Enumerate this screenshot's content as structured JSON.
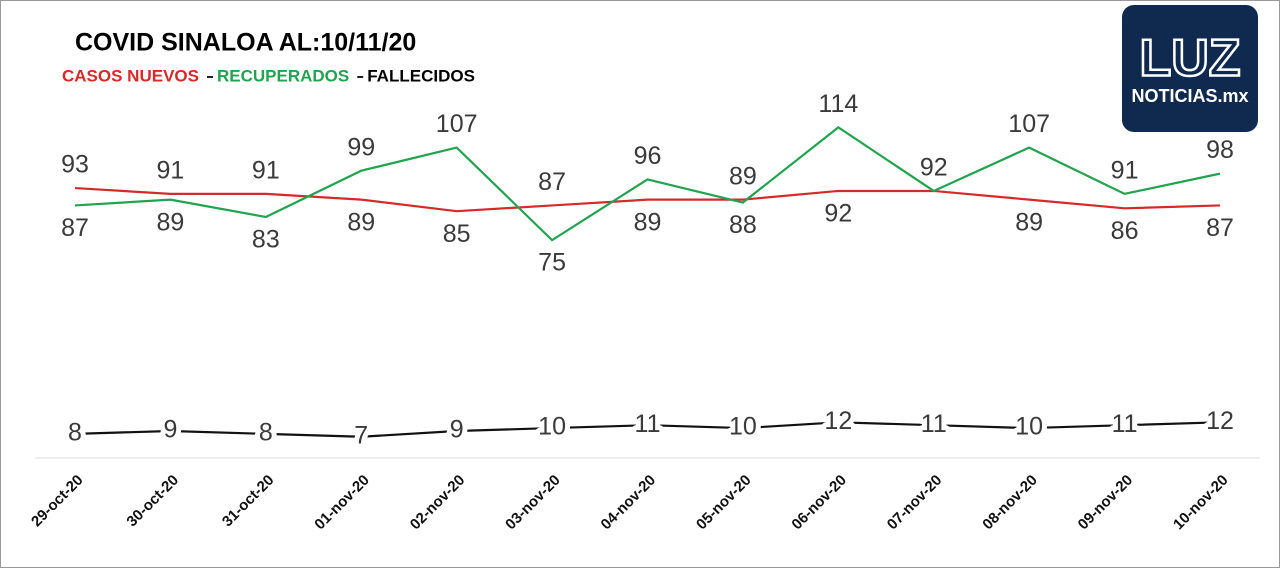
{
  "chart_data": {
    "type": "line",
    "title": "COVID SINALOA AL:10/11/20",
    "logo": "LUZ",
    "logo_subtitle": "NOTICIAS.mx",
    "categories": [
      "29-oct-20",
      "30-oct-20",
      "31-oct-20",
      "01-nov-20",
      "02-nov-20",
      "03-nov-20",
      "04-nov-20",
      "05-nov-20",
      "06-nov-20",
      "07-nov-20",
      "08-nov-20",
      "09-nov-20",
      "10-nov-20"
    ],
    "series": [
      {
        "name": "CASOS NUEVOS",
        "color": "#d62a2a",
        "values": [
          93,
          91,
          91,
          89,
          85,
          87,
          89,
          89,
          92,
          92,
          89,
          86,
          87
        ]
      },
      {
        "name": "RECUPERADOS",
        "color": "#22a350",
        "values": [
          87,
          89,
          83,
          99,
          107,
          75,
          96,
          88,
          114,
          92,
          107,
          91,
          98
        ]
      },
      {
        "name": "FALLECIDOS",
        "color": "#111111",
        "values": [
          8,
          9,
          8,
          7,
          9,
          10,
          11,
          10,
          12,
          11,
          10,
          11,
          12
        ]
      }
    ],
    "ylim": [
      0,
      120
    ]
  }
}
